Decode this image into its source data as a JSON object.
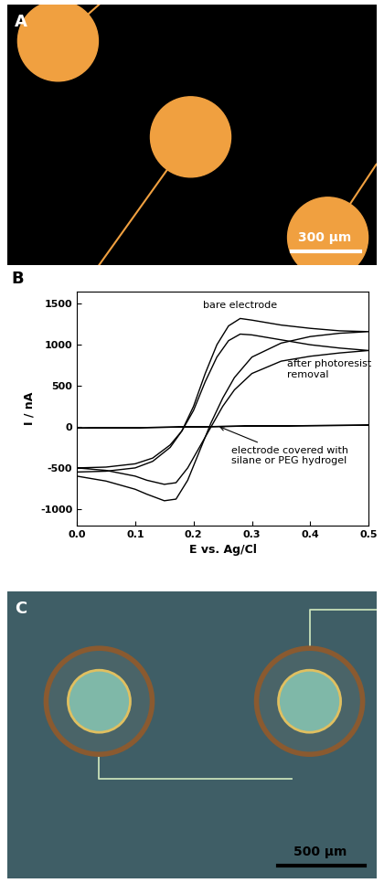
{
  "chart_data": {
    "type": "line",
    "panel_label": "B",
    "x_label": "E vs. Ag/Cl",
    "y_label": "I / nA",
    "xlim": [
      0.0,
      0.5
    ],
    "xticks": [
      0.0,
      0.1,
      0.2,
      0.3,
      0.4,
      0.5
    ],
    "ylim": [
      -1200,
      1650
    ],
    "yticks": [
      -1000,
      -500,
      0,
      500,
      1000,
      1500
    ],
    "grid": false,
    "series": [
      {
        "color": "#000000",
        "x": [
          0.0,
          0.05,
          0.1,
          0.13,
          0.16,
          0.18,
          0.2,
          0.22,
          0.24,
          0.26,
          0.28,
          0.3,
          0.35,
          0.4,
          0.45,
          0.5,
          0.45,
          0.4,
          0.35,
          0.3,
          0.27,
          0.25,
          0.23,
          0.21,
          0.19,
          0.17,
          0.15,
          0.12,
          0.1,
          0.05,
          0.0
        ],
        "values": [
          -550,
          -540,
          -500,
          -420,
          -250,
          -50,
          250,
          650,
          1000,
          1230,
          1320,
          1300,
          1240,
          1200,
          1170,
          1160,
          1140,
          1100,
          1020,
          850,
          600,
          350,
          50,
          -300,
          -650,
          -880,
          -900,
          -820,
          -760,
          -660,
          -600
        ]
      },
      {
        "color": "#000000",
        "x": [
          0.0,
          0.05,
          0.1,
          0.13,
          0.16,
          0.18,
          0.2,
          0.22,
          0.24,
          0.26,
          0.28,
          0.3,
          0.35,
          0.4,
          0.45,
          0.5,
          0.45,
          0.4,
          0.35,
          0.3,
          0.27,
          0.25,
          0.23,
          0.21,
          0.19,
          0.17,
          0.15,
          0.12,
          0.1,
          0.05,
          0.0
        ],
        "values": [
          -500,
          -490,
          -450,
          -380,
          -220,
          -50,
          200,
          550,
          850,
          1050,
          1130,
          1120,
          1060,
          1000,
          960,
          930,
          900,
          860,
          800,
          650,
          450,
          250,
          0,
          -250,
          -500,
          -680,
          -700,
          -650,
          -600,
          -530,
          -500
        ]
      },
      {
        "color": "#000000",
        "x": [
          0.0,
          0.1,
          0.2,
          0.3,
          0.4,
          0.5,
          0.4,
          0.3,
          0.2,
          0.1,
          0.0
        ],
        "values": [
          -15,
          -10,
          0,
          10,
          15,
          20,
          15,
          10,
          0,
          -10,
          -15
        ]
      }
    ],
    "annotations": [
      "bare electrode",
      "after photoresist\nremoval",
      "electrode covered with\nsilane or PEG hydrogel"
    ]
  },
  "images": [
    {
      "panel_label": "A",
      "scale_bar": "300 µm"
    },
    {
      "panel_label": "C",
      "scale_bar": "500 µm"
    }
  ]
}
